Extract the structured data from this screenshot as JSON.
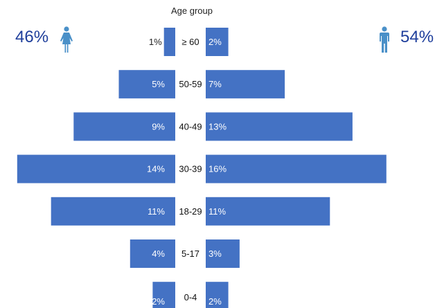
{
  "chart_data": {
    "type": "bar",
    "title": "Age group",
    "categories": [
      "≥ 60",
      "50-59",
      "40-49",
      "30-39",
      "18-29",
      "5-17",
      "0-4"
    ],
    "series": [
      {
        "values": [
          1,
          5,
          9,
          14,
          11,
          4,
          2
        ],
        "labels": [
          "1%",
          "5%",
          "9%",
          "14%",
          "11%",
          "4%",
          "2%"
        ]
      },
      {
        "values": [
          2,
          7,
          13,
          16,
          11,
          3,
          2
        ],
        "labels": [
          "2%",
          "7%",
          "13%",
          "16%",
          "11%",
          "3%",
          "2%"
        ]
      }
    ],
    "bar_color": "#4472c4",
    "label_colors": {
      "inside": "#ffffff",
      "outside": "#222222"
    }
  },
  "totals": {
    "left": "46%",
    "right": "54%",
    "color": "#1f3f9c",
    "left_icon": "female-figure-icon",
    "right_icon": "male-figure-icon",
    "icon_color": "#4a90c8"
  }
}
